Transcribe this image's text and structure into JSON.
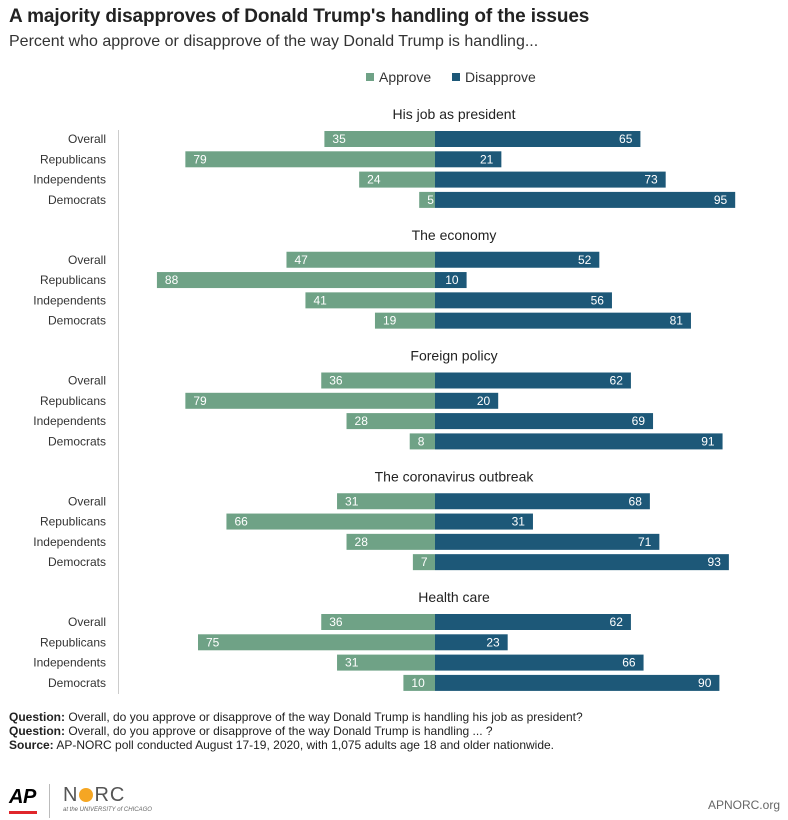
{
  "title": "A majority disapproves of Donald Trump's handling of the issues",
  "subtitle": "Percent who approve or disapprove of the way Donald Trump is handling...",
  "legend": {
    "approve": "Approve",
    "disapprove": "Disapprove"
  },
  "colors": {
    "approve": "#6fa286",
    "disapprove": "#1d5878",
    "axis": "#cccccc"
  },
  "chart_data": {
    "type": "bar",
    "orientation": "horizontal-diverging",
    "categories": [
      "Overall",
      "Republicans",
      "Independents",
      "Democrats"
    ],
    "groups": [
      {
        "title": "His job as president",
        "approve": [
          35,
          79,
          24,
          5
        ],
        "disapprove": [
          65,
          21,
          73,
          95
        ]
      },
      {
        "title": "The economy",
        "approve": [
          47,
          88,
          41,
          19
        ],
        "disapprove": [
          52,
          10,
          56,
          81
        ]
      },
      {
        "title": "Foreign policy",
        "approve": [
          36,
          79,
          28,
          8
        ],
        "disapprove": [
          62,
          20,
          69,
          91
        ]
      },
      {
        "title": "The coronavirus outbreak",
        "approve": [
          31,
          66,
          28,
          7
        ],
        "disapprove": [
          68,
          31,
          71,
          93
        ]
      },
      {
        "title": "Health care",
        "approve": [
          36,
          75,
          31,
          10
        ],
        "disapprove": [
          62,
          23,
          66,
          90
        ]
      }
    ],
    "series": [
      {
        "name": "Approve"
      },
      {
        "name": "Disapprove"
      }
    ],
    "legend_position": "top-center",
    "grid": false
  },
  "notes": {
    "q1_label": "Question:",
    "q1_text": " Overall, do you approve or disapprove of the way Donald Trump is handling his job as president?",
    "q2_label": "Question:",
    "q2_text": " Overall, do you approve or disapprove of the way Donald Trump is handling ... ?",
    "source_label": "Source:",
    "source_text": " AP-NORC poll conducted August 17-19, 2020, with 1,075 adults age 18 and older nationwide."
  },
  "logos": {
    "ap": "AP",
    "norc_n": "N",
    "norc_rc": "RC",
    "norc_sub": "at the UNIVERSITY of CHICAGO"
  },
  "site": "APNORC.org"
}
